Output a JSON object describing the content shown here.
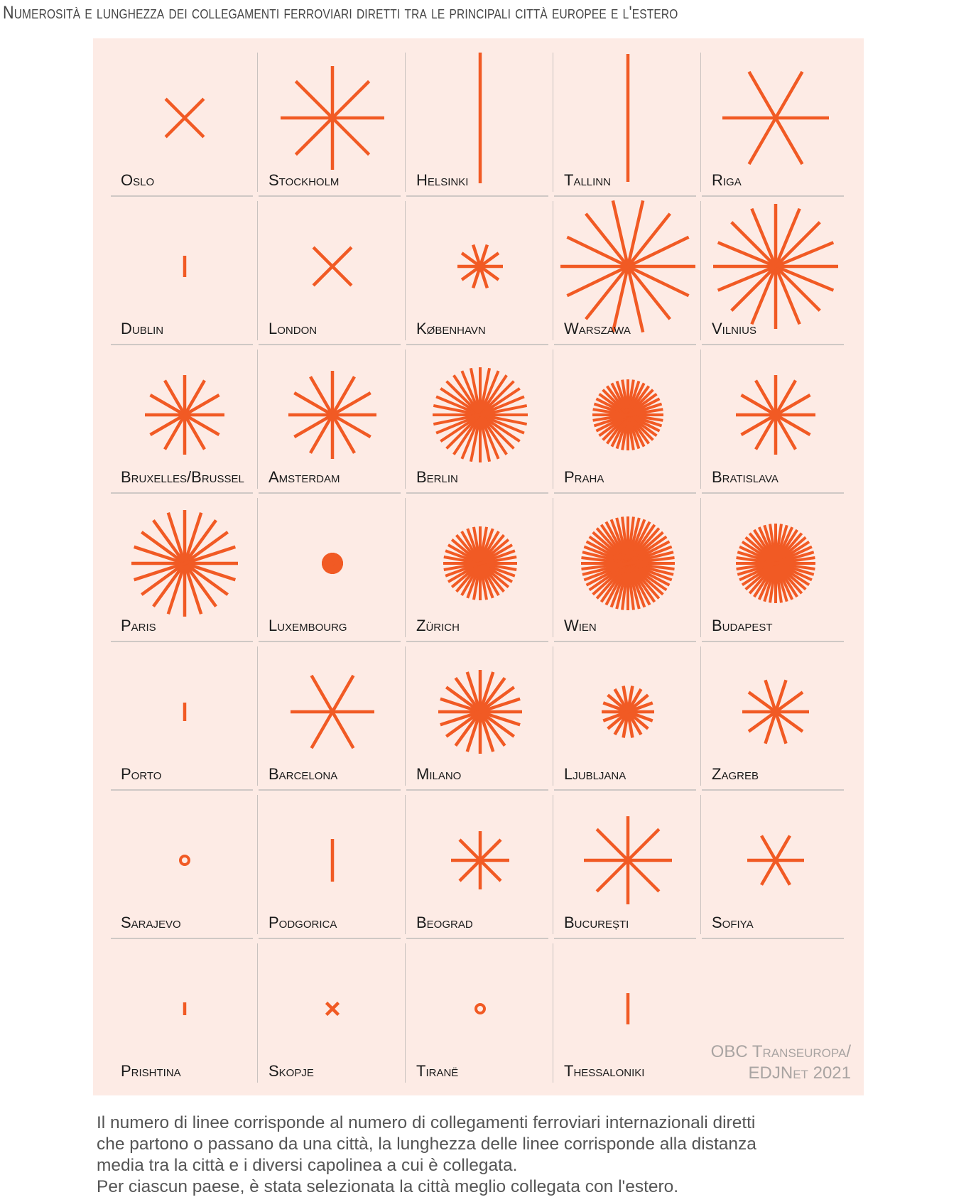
{
  "title": "Numerosità e lunghezza dei collegamenti ferroviari diretti tra le principali città europee e l'estero",
  "colors": {
    "accent": "#f15a24",
    "background": "#fdebe5",
    "label": "#1a1a1a",
    "credit": "#a9a4a2"
  },
  "chart_data": {
    "type": "radial-small-multiples",
    "encoding": {
      "lines": "number of direct international rail connections",
      "length": "average distance to terminus (relative units)"
    },
    "cities": [
      {
        "name": "Oslo",
        "lines": 2,
        "length": 38
      },
      {
        "name": "Stockholm",
        "lines": 4,
        "length": 73
      },
      {
        "name": "Helsinki",
        "lines": 1,
        "length": 92
      },
      {
        "name": "Tallinn",
        "lines": 1,
        "length": 90
      },
      {
        "name": "Riga",
        "lines": 3,
        "length": 75
      },
      {
        "name": "Dublin",
        "lines": 1,
        "length": 15
      },
      {
        "name": "London",
        "lines": 2,
        "length": 38
      },
      {
        "name": "København",
        "lines": 5,
        "length": 32
      },
      {
        "name": "Warszawa",
        "lines": 7,
        "length": 95
      },
      {
        "name": "Vilnius",
        "lines": 8,
        "length": 88
      },
      {
        "name": "Bruxelles/Brussel",
        "lines": 6,
        "length": 56
      },
      {
        "name": "Amsterdam",
        "lines": 6,
        "length": 62
      },
      {
        "name": "Berlin",
        "lines": 16,
        "length": 67
      },
      {
        "name": "Praha",
        "lines": 20,
        "length": 50
      },
      {
        "name": "Bratislava",
        "lines": 6,
        "length": 56
      },
      {
        "name": "Paris",
        "lines": 10,
        "length": 75
      },
      {
        "name": "Luxembourg",
        "lines": 12,
        "length": 15
      },
      {
        "name": "Zürich",
        "lines": 18,
        "length": 52
      },
      {
        "name": "Wien",
        "lines": 26,
        "length": 66
      },
      {
        "name": "Budapest",
        "lines": 22,
        "length": 56
      },
      {
        "name": "Porto",
        "lines": 1,
        "length": 13
      },
      {
        "name": "Barcelona",
        "lines": 3,
        "length": 59
      },
      {
        "name": "Milano",
        "lines": 10,
        "length": 59
      },
      {
        "name": "Ljubljana",
        "lines": 9,
        "length": 37
      },
      {
        "name": "Zagreb",
        "lines": 5,
        "length": 47
      },
      {
        "name": "Sarajevo",
        "lines": 0,
        "length": 0
      },
      {
        "name": "Podgorica",
        "lines": 1,
        "length": 30
      },
      {
        "name": "Beograd",
        "lines": 4,
        "length": 41
      },
      {
        "name": "București",
        "lines": 4,
        "length": 62
      },
      {
        "name": "Sofiya",
        "lines": 3,
        "length": 40
      },
      {
        "name": "Prishtina",
        "lines": 1,
        "length": 9
      },
      {
        "name": "Skopje",
        "lines": 2,
        "length": 12
      },
      {
        "name": "Tiranë",
        "lines": 0,
        "length": 0
      },
      {
        "name": "Thessaloniki",
        "lines": 1,
        "length": 22
      }
    ]
  },
  "credit": {
    "line1": "OBC Transeuropa/",
    "line2": "EDJNet 2021"
  },
  "caption": [
    "Il numero di linee corrisponde al numero di collegamenti ferroviari internazionali diretti",
    "che partono o passano da una città, la lunghezza delle linee corrisponde alla distanza",
    "media tra la città e i diversi capolinea a cui è collegata.",
    "Per ciascun paese, è stata selezionata la città meglio collegata con l'estero."
  ]
}
